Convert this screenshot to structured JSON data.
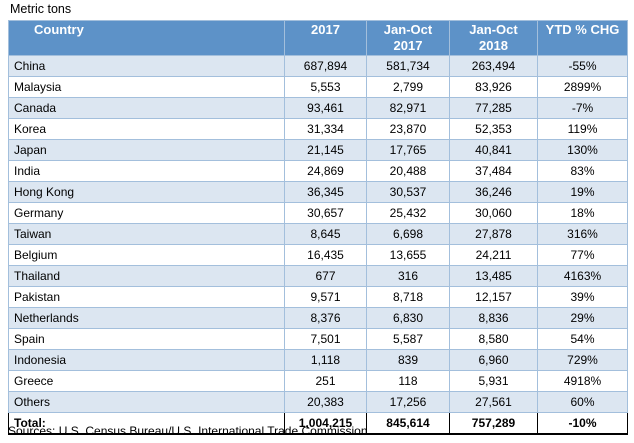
{
  "title": "Metric tons",
  "footer": "Sources: U.S. Census Bureau/U.S. International Trade Commission",
  "colors": {
    "header_bg": "#5d92c8",
    "header_text": "#ffffff",
    "header_border": "#41719c",
    "alt_row_bg": "#dce6f1",
    "grid_border": "#a3bfdc",
    "total_border": "#000000",
    "body_text": "#000000"
  },
  "chart_data": {
    "type": "table",
    "title": "Metric tons",
    "columns": [
      "Country",
      "2017",
      "Jan-Oct 2017",
      "Jan-Oct 2018",
      "YTD % CHG"
    ],
    "header_lines": [
      [
        "Country"
      ],
      [
        "2017"
      ],
      [
        "Jan-Oct",
        "2017"
      ],
      [
        "Jan-Oct",
        "2018"
      ],
      [
        "YTD % CHG"
      ]
    ],
    "rows": [
      {
        "country": "China",
        "values": [
          "687,894",
          "581,734",
          "263,494",
          "-55%"
        ]
      },
      {
        "country": "Malaysia",
        "values": [
          "5,553",
          "2,799",
          "83,926",
          "2899%"
        ]
      },
      {
        "country": "Canada",
        "values": [
          "93,461",
          "82,971",
          "77,285",
          "-7%"
        ]
      },
      {
        "country": "Korea",
        "values": [
          "31,334",
          "23,870",
          "52,353",
          "119%"
        ]
      },
      {
        "country": "Japan",
        "values": [
          "21,145",
          "17,765",
          "40,841",
          "130%"
        ]
      },
      {
        "country": "India",
        "values": [
          "24,869",
          "20,488",
          "37,484",
          "83%"
        ]
      },
      {
        "country": "Hong Kong",
        "values": [
          "36,345",
          "30,537",
          "36,246",
          "19%"
        ]
      },
      {
        "country": "Germany",
        "values": [
          "30,657",
          "25,432",
          "30,060",
          "18%"
        ]
      },
      {
        "country": "Taiwan",
        "values": [
          "8,645",
          "6,698",
          "27,878",
          "316%"
        ]
      },
      {
        "country": "Belgium",
        "values": [
          "16,435",
          "13,655",
          "24,211",
          "77%"
        ]
      },
      {
        "country": "Thailand",
        "values": [
          "677",
          "316",
          "13,485",
          "4163%"
        ]
      },
      {
        "country": "Pakistan",
        "values": [
          "9,571",
          "8,718",
          "12,157",
          "39%"
        ]
      },
      {
        "country": "Netherlands",
        "values": [
          "8,376",
          "6,830",
          "8,836",
          "29%"
        ]
      },
      {
        "country": "Spain",
        "values": [
          "7,501",
          "5,587",
          "8,580",
          "54%"
        ]
      },
      {
        "country": "Indonesia",
        "values": [
          "1,118",
          "839",
          "6,960",
          "729%"
        ]
      },
      {
        "country": "Greece",
        "values": [
          "251",
          "118",
          "5,931",
          "4918%"
        ]
      },
      {
        "country": "Others",
        "values": [
          "20,383",
          "17,256",
          "27,561",
          "60%"
        ]
      }
    ],
    "total": {
      "label": "Total:",
      "values": [
        "1,004,215",
        "845,614",
        "757,289",
        "-10%"
      ]
    },
    "source": "Sources: U.S. Census Bureau/U.S. International Trade Commission"
  }
}
